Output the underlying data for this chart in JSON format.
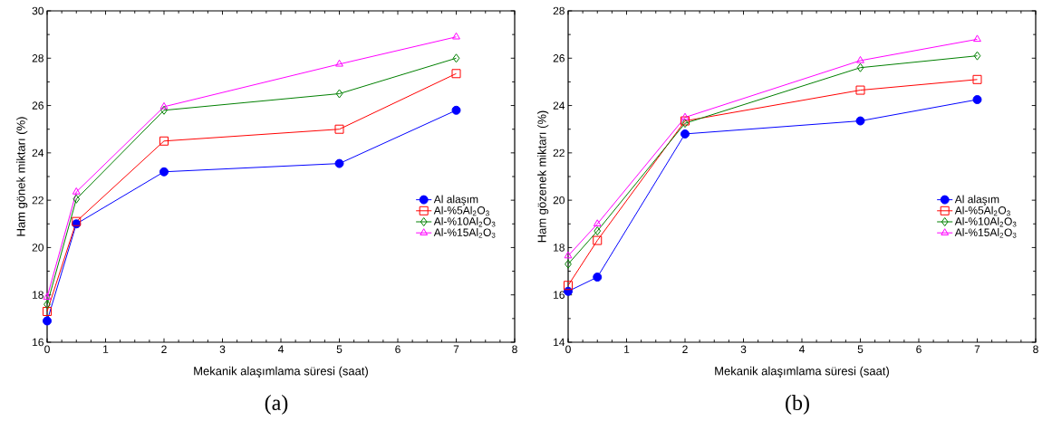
{
  "chart_data": [
    {
      "type": "line",
      "title": "(a)",
      "xlabel": "Mekanik alaşımlama süresi (saat)",
      "ylabel": "Ham gönek miktarı (%)",
      "x": [
        0,
        0.5,
        2,
        5,
        7
      ],
      "xlim": [
        0,
        8
      ],
      "xticks": [
        0,
        1,
        2,
        3,
        4,
        5,
        6,
        7,
        8
      ],
      "ylim": [
        16,
        30
      ],
      "yticks": [
        16,
        18,
        20,
        22,
        24,
        26,
        28,
        30
      ],
      "legend": "right",
      "series": [
        {
          "name": "Al alaşım",
          "color": "#0000ff",
          "marker": "circle",
          "values": [
            16.9,
            21.0,
            23.2,
            23.55,
            25.8
          ]
        },
        {
          "name": "Al-%5Al$_{2}$O$_{3}$",
          "color": "#ff0000",
          "marker": "square",
          "values": [
            17.3,
            21.1,
            24.5,
            25.0,
            27.35
          ]
        },
        {
          "name": "Al-%10Al$_{2}$O$_{3}$",
          "color": "#008000",
          "marker": "diamond",
          "values": [
            17.6,
            22.05,
            25.8,
            26.5,
            28.0
          ]
        },
        {
          "name": "Al-%15Al$_{2}$O$_{3}$",
          "color": "#ff00ff",
          "marker": "triangle",
          "values": [
            17.9,
            22.35,
            25.95,
            27.75,
            28.9
          ]
        }
      ]
    },
    {
      "type": "line",
      "title": "(b)",
      "xlabel": "Mekanik alaşımlama süresi (saat)",
      "ylabel": "Ham gözenek miktarı (%)",
      "x": [
        0,
        0.5,
        2,
        5,
        7
      ],
      "xlim": [
        0,
        8
      ],
      "xticks": [
        0,
        1,
        2,
        3,
        4,
        5,
        6,
        7,
        8
      ],
      "ylim": [
        14,
        28
      ],
      "yticks": [
        14,
        16,
        18,
        20,
        22,
        24,
        26,
        28
      ],
      "legend": "right",
      "series": [
        {
          "name": "Al alaşım",
          "color": "#0000ff",
          "marker": "circle",
          "values": [
            16.15,
            16.75,
            22.8,
            23.35,
            24.25
          ]
        },
        {
          "name": "Al-%5Al$_{2}$O$_{3}$",
          "color": "#ff0000",
          "marker": "square",
          "values": [
            16.4,
            18.3,
            23.35,
            24.65,
            25.1
          ]
        },
        {
          "name": "Al-%10Al$_{2}$O$_{3}$",
          "color": "#008000",
          "marker": "diamond",
          "values": [
            17.3,
            18.7,
            23.25,
            25.6,
            26.1
          ]
        },
        {
          "name": "Al-%15Al$_{2}$O$_{3}$",
          "color": "#ff00ff",
          "marker": "triangle",
          "values": [
            17.65,
            19.0,
            23.5,
            25.9,
            26.8
          ]
        }
      ]
    }
  ]
}
